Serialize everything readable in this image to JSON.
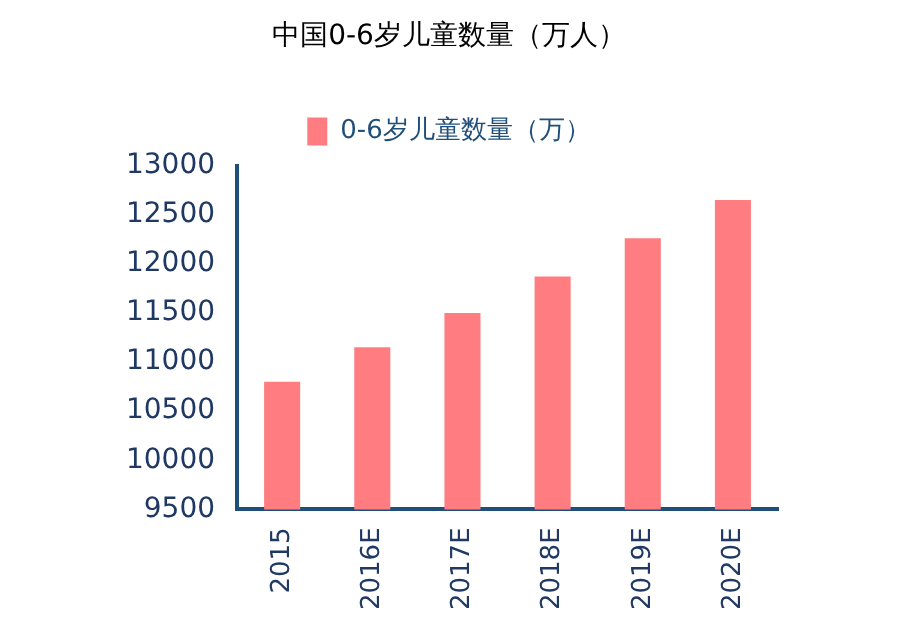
{
  "chart_data": {
    "type": "bar",
    "title": "中国0-6岁儿童数量（万人）",
    "categories": [
      "2015",
      "2016E",
      "2017E",
      "2018E",
      "2019E",
      "2020E"
    ],
    "series": [
      {
        "name": "0-6岁儿童数量（万）",
        "color": "#ff7c80",
        "values": [
          10800,
          11150,
          11500,
          11870,
          12260,
          12650
        ]
      }
    ],
    "ylim": [
      9500,
      13000
    ],
    "yticks": [
      9500,
      10000,
      10500,
      11000,
      11500,
      12000,
      12500,
      13000
    ],
    "grid": false,
    "legend": "top"
  }
}
